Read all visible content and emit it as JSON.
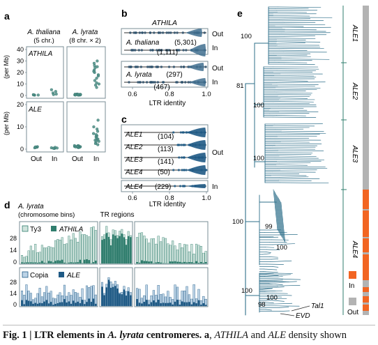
{
  "colors": {
    "athila": "#2f7d6d",
    "athila_light": "#5aa596",
    "ale": "#1f5a85",
    "ale_light": "#3f7fb0",
    "ty3": "#cfe3dc",
    "copia": "#bcd3e6",
    "in": "#f26522",
    "out": "#b3b3b3",
    "frame": "#7a8c96",
    "dark": "#2b2b2b"
  },
  "panel_a": {
    "label": "a",
    "columns": [
      {
        "name": "A. thaliana",
        "sub": "(5 chr.)"
      },
      {
        "name": "A. lyrata",
        "sub": "(8 chr. × 2)"
      }
    ],
    "ylabel": "(per Mb)",
    "xticks": [
      "Out",
      "In"
    ],
    "rows": [
      {
        "title": "ATHILA",
        "ylim": [
          0,
          40
        ],
        "yticks": [
          "0",
          "10",
          "20",
          "30",
          "40"
        ],
        "thaliana_out": [
          0.3,
          0.5,
          0.6,
          0.4,
          0.7
        ],
        "thaliana_in": [
          1.2,
          3.5,
          5.0,
          2.2,
          0.8
        ],
        "lyrata_out": [
          0.4,
          0.6,
          0.8,
          1.0,
          0.5,
          0.9,
          1.2,
          0.7,
          0.3,
          1.1,
          0.6,
          0.9,
          0.4,
          0.8,
          1.0,
          0.6
        ],
        "lyrata_in": [
          7,
          9,
          11,
          13,
          15,
          18,
          20,
          22,
          24,
          26,
          28,
          30,
          17,
          21,
          10,
          25
        ]
      },
      {
        "title": "ALE",
        "ylim": [
          0,
          20
        ],
        "yticks": [
          "0",
          "10",
          "20"
        ],
        "thaliana_out": [
          0.6,
          0.9,
          1.1,
          0.8,
          1.0
        ],
        "thaliana_in": [
          0.3,
          0.6,
          0.8,
          0.5,
          0.4
        ],
        "lyrata_out": [
          0.8,
          1.0,
          1.3,
          1.5,
          1.1,
          0.9,
          1.2,
          1.6,
          1.4,
          1.0,
          0.7,
          1.3,
          1.1,
          1.5,
          0.9,
          1.2
        ],
        "lyrata_in": [
          2,
          3,
          4,
          4.5,
          5,
          5.5,
          6,
          6.5,
          7,
          3.5,
          8,
          9,
          10,
          4,
          2.5,
          13
        ]
      }
    ]
  },
  "panel_b": {
    "label": "b",
    "title": "ATHILA",
    "row_labels": [
      "Out",
      "In"
    ],
    "xlabel": "LTR identity",
    "xticks": [
      "0.6",
      "0.8",
      "1.0"
    ],
    "groups": [
      {
        "name": "A. thaliana",
        "out_count": "(5,301)",
        "in_count": "(1,111)"
      },
      {
        "name": "A. lyrata",
        "out_count": "(297)",
        "in_count": "(467)"
      }
    ]
  },
  "panel_c": {
    "label": "c",
    "xlabel": "LTR identity",
    "xticks": [
      "0.6",
      "0.8",
      "1.0"
    ],
    "out_label": "Out",
    "in_label": "In",
    "out_clades": [
      {
        "name": "ALE1",
        "count": "(104)"
      },
      {
        "name": "ALE2",
        "count": "(113)"
      },
      {
        "name": "ALE3",
        "count": "(141)"
      },
      {
        "name": "ALE4",
        "count": "(50)"
      }
    ],
    "in_clade": {
      "name": "ALE4",
      "count": "(229)"
    }
  },
  "panel_d": {
    "label": "d",
    "title": "A. lyrata",
    "subtitle": "(chromosome bins)",
    "tr_label": "TR regions",
    "yticks_top": [
      "0",
      "14",
      "28"
    ],
    "yticks_bottom": [
      "0",
      "14",
      "28"
    ],
    "legend_top": [
      "Ty3",
      "ATHILA"
    ],
    "legend_bottom": [
      "Copia",
      "ALE"
    ],
    "left_bins": 34,
    "tr_bins": 14,
    "right_bins": 30,
    "tr_seed": 7
  },
  "panel_e": {
    "label": "e",
    "bootstraps": [
      "100",
      "81",
      "100",
      "100",
      "100",
      "99",
      "100",
      "100",
      "98",
      "100"
    ],
    "clades": [
      "ALE1",
      "ALE2",
      "ALE3",
      "ALE4"
    ],
    "tips": [
      "Tal1",
      "EVD"
    ],
    "legend": [
      "In",
      "Out"
    ]
  },
  "caption": {
    "fig": "Fig. 1",
    "sep": " | ",
    "title_pre": "LTR elements in ",
    "title_species": "A. lyrata",
    "title_post": " centromeres. ",
    "a_label": "a",
    "rest_pre": ", ",
    "athila": "ATHILA",
    "and": " and ",
    "ale": "ALE",
    "rest_post": " density shown"
  }
}
